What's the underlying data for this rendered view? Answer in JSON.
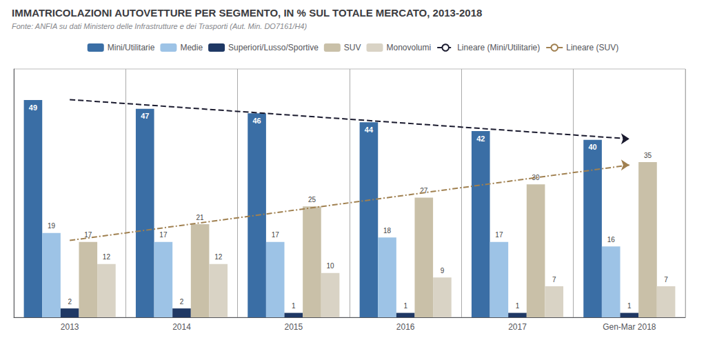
{
  "chart_data": {
    "type": "bar",
    "title": "IMMATRICOLAZIONI AUTOVETTURE PER SEGMENTO, IN % SUL TOTALE MERCATO, 2013-2018",
    "subtitle": "Fonte: ANFIA su dati Ministero delle Infrastrutture e dei Trasporti (Aut. Min. DO7161/H4)",
    "categories": [
      "2013",
      "2014",
      "2015",
      "2016",
      "2017",
      "Gen-Mar 2018"
    ],
    "series": [
      {
        "name": "Mini/Utilitarie",
        "type": "bar",
        "color": "#3A6EA5",
        "values": [
          49,
          47,
          46,
          44,
          42,
          40
        ]
      },
      {
        "name": "Medie",
        "type": "bar",
        "color": "#9DC3E6",
        "values": [
          19,
          17,
          17,
          18,
          17,
          16
        ]
      },
      {
        "name": "Superiori/Lusso/Sportive",
        "type": "bar",
        "color": "#1F3864",
        "values": [
          2,
          2,
          1,
          1,
          1,
          1
        ]
      },
      {
        "name": "SUV",
        "type": "bar",
        "color": "#C9C0A8",
        "values": [
          17,
          21,
          25,
          27,
          30,
          35
        ]
      },
      {
        "name": "Monovolumi",
        "type": "bar",
        "color": "#D9D3C5",
        "values": [
          12,
          12,
          10,
          9,
          7,
          7
        ]
      },
      {
        "name": "Lineare (Mini/Utilitarie)",
        "type": "line",
        "color": "#1A1A2E",
        "line_style": "dashed",
        "marker": "arrow",
        "values": [
          49.095238,
          47.32381,
          45.552381,
          43.780952,
          42.009524,
          40.238095
        ]
      },
      {
        "name": "Lineare (SUV)",
        "type": "line",
        "color": "#A08050",
        "line_style": "dashdot",
        "marker": "arrow",
        "values": [
          17.333333,
          20.733333,
          24.133333,
          27.533333,
          30.933333,
          34.333333
        ]
      }
    ],
    "ylim": [
      0,
      56
    ],
    "tick_labels": "x",
    "data_labels": true,
    "legend": "top"
  }
}
